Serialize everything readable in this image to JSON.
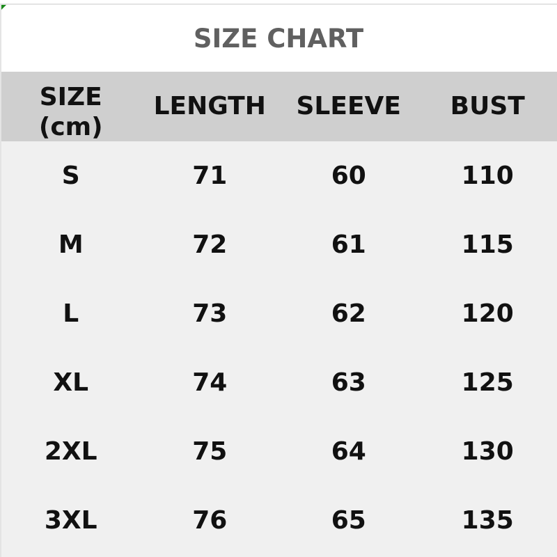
{
  "title": "SIZE CHART",
  "chart_data": {
    "type": "table",
    "title": "SIZE CHART",
    "columns": [
      "SIZE (cm)",
      "LENGTH",
      "SLEEVE",
      "BUST"
    ],
    "header": {
      "size_line1": "SIZE",
      "size_line2": "(cm)",
      "length": "LENGTH",
      "sleeve": "SLEEVE",
      "bust": "BUST"
    },
    "rows": [
      [
        "S",
        "71",
        "60",
        "110"
      ],
      [
        "M",
        "72",
        "61",
        "115"
      ],
      [
        "L",
        "73",
        "62",
        "120"
      ],
      [
        "XL",
        "74",
        "63",
        "125"
      ],
      [
        "2XL",
        "75",
        "64",
        "130"
      ],
      [
        "3XL",
        "76",
        "65",
        "135"
      ]
    ]
  },
  "colors": {
    "title": "#606060",
    "header_bg": "#cfcfcf",
    "body_bg": "#f0f0f0",
    "text": "#111111"
  }
}
